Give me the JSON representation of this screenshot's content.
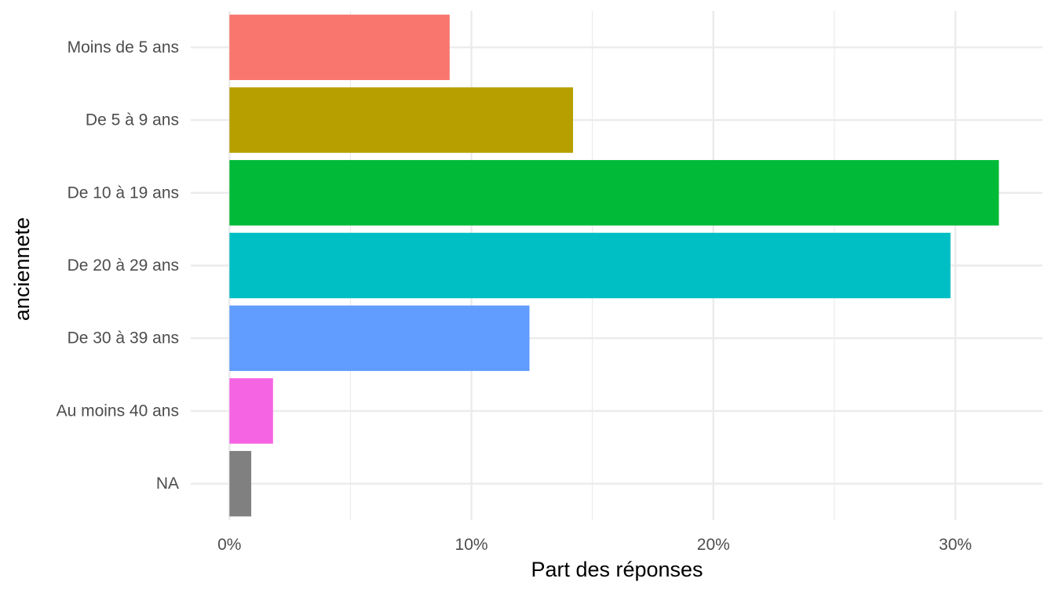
{
  "chart_data": {
    "type": "bar",
    "orientation": "horizontal",
    "title": "",
    "xlabel": "Part des réponses",
    "ylabel": "anciennete",
    "categories": [
      "Moins de 5 ans",
      "De 5 à 9 ans",
      "De 10 à 19 ans",
      "De 20 à 29 ans",
      "De 30 à 39 ans",
      "Au moins 40 ans",
      "NA"
    ],
    "values": [
      9.1,
      14.2,
      31.8,
      29.8,
      12.4,
      1.8,
      0.9
    ],
    "colors": [
      "#F8766D",
      "#B79F00",
      "#00BA38",
      "#00BFC4",
      "#619CFF",
      "#F564E3",
      "#808080"
    ],
    "x_ticks": [
      0,
      10,
      20,
      30
    ],
    "x_tick_labels": [
      "0%",
      "10%",
      "20%",
      "30%"
    ],
    "xlim": [
      -1.6,
      33.6
    ],
    "grid": true,
    "legend": "none"
  }
}
